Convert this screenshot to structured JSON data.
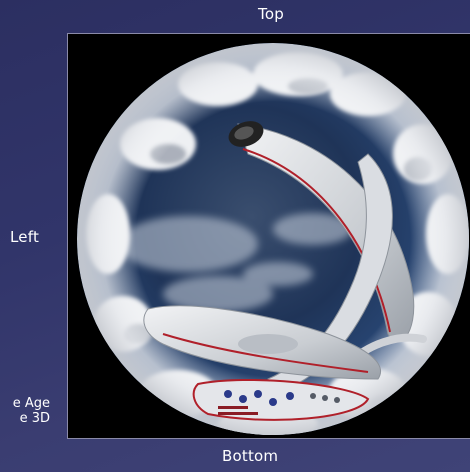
{
  "labels": {
    "top": "Top",
    "left": "Left",
    "bottom": "Bottom"
  },
  "caption": {
    "line1": "e Age",
    "line2": "e 3D"
  },
  "colors": {
    "background": "#31356a",
    "frame": "#000000",
    "sky": "#1d3050",
    "hull": "#d8dce0",
    "stripe": "#b0202a"
  },
  "image": {
    "description_icon": "fisheye-sky-spacecraft-image"
  }
}
